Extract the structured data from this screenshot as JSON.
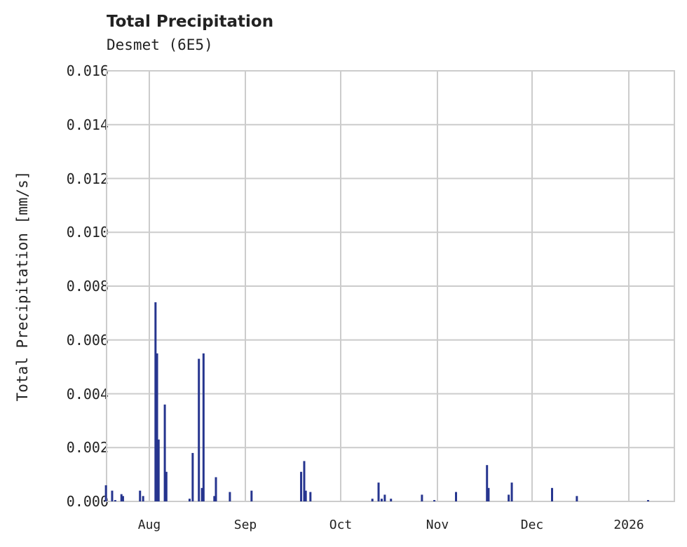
{
  "chart_data": {
    "type": "bar",
    "title": "Total Precipitation",
    "subtitle": "Desmet (6E5)",
    "xlabel": "",
    "ylabel": "Total Precipitation [mm/s]",
    "ylim": [
      0,
      0.016
    ],
    "yticks": [
      "0.000",
      "0.002",
      "0.004",
      "0.006",
      "0.008",
      "0.010",
      "0.012",
      "0.014",
      "0.016"
    ],
    "xticks": [
      "Aug",
      "Sep",
      "Oct",
      "Nov",
      "Dec",
      "2026"
    ],
    "grid": true,
    "bar_color": "#26358f",
    "series": [
      {
        "name": "Total Precipitation",
        "points": [
          {
            "date": "2025-07-18",
            "value": 0.0006
          },
          {
            "date": "2025-07-20",
            "value": 0.0004
          },
          {
            "date": "2025-07-21",
            "value": 5e-05
          },
          {
            "date": "2025-07-23",
            "value": 0.00027
          },
          {
            "date": "2025-07-23.5",
            "value": 0.0002
          },
          {
            "date": "2025-07-29",
            "value": 0.0004
          },
          {
            "date": "2025-07-30",
            "value": 0.0002
          },
          {
            "date": "2025-08-03",
            "value": 0.0074
          },
          {
            "date": "2025-08-03.5",
            "value": 0.0055
          },
          {
            "date": "2025-08-04",
            "value": 0.0023
          },
          {
            "date": "2025-08-06",
            "value": 0.0036
          },
          {
            "date": "2025-08-06.5",
            "value": 0.0011
          },
          {
            "date": "2025-08-14",
            "value": 0.0001
          },
          {
            "date": "2025-08-15",
            "value": 0.0018
          },
          {
            "date": "2025-08-17",
            "value": 0.0053
          },
          {
            "date": "2025-08-18",
            "value": 0.0005
          },
          {
            "date": "2025-08-18.5",
            "value": 0.0055
          },
          {
            "date": "2025-08-22",
            "value": 0.0002
          },
          {
            "date": "2025-08-22.5",
            "value": 0.0009
          },
          {
            "date": "2025-08-27",
            "value": 0.00035
          },
          {
            "date": "2025-09-03",
            "value": 0.0004
          },
          {
            "date": "2025-09-19",
            "value": 0.0011
          },
          {
            "date": "2025-09-20",
            "value": 0.0015
          },
          {
            "date": "2025-09-20.5",
            "value": 0.0004
          },
          {
            "date": "2025-09-22",
            "value": 0.00035
          },
          {
            "date": "2025-10-12",
            "value": 0.0001
          },
          {
            "date": "2025-10-14",
            "value": 0.0007
          },
          {
            "date": "2025-10-15",
            "value": 0.0001
          },
          {
            "date": "2025-10-16",
            "value": 0.00025
          },
          {
            "date": "2025-10-18",
            "value": 0.0001
          },
          {
            "date": "2025-10-28",
            "value": 0.00025
          },
          {
            "date": "2025-11-01",
            "value": 5e-05
          },
          {
            "date": "2025-11-08",
            "value": 0.00035
          },
          {
            "date": "2025-11-18",
            "value": 0.00135
          },
          {
            "date": "2025-11-18.5",
            "value": 0.0005
          },
          {
            "date": "2025-11-25",
            "value": 0.00025
          },
          {
            "date": "2025-11-26",
            "value": 0.0007
          },
          {
            "date": "2025-12-09",
            "value": 0.0005
          },
          {
            "date": "2025-12-17",
            "value": 0.0002
          },
          {
            "date": "2026-01-09",
            "value": 5e-05
          }
        ]
      }
    ]
  }
}
